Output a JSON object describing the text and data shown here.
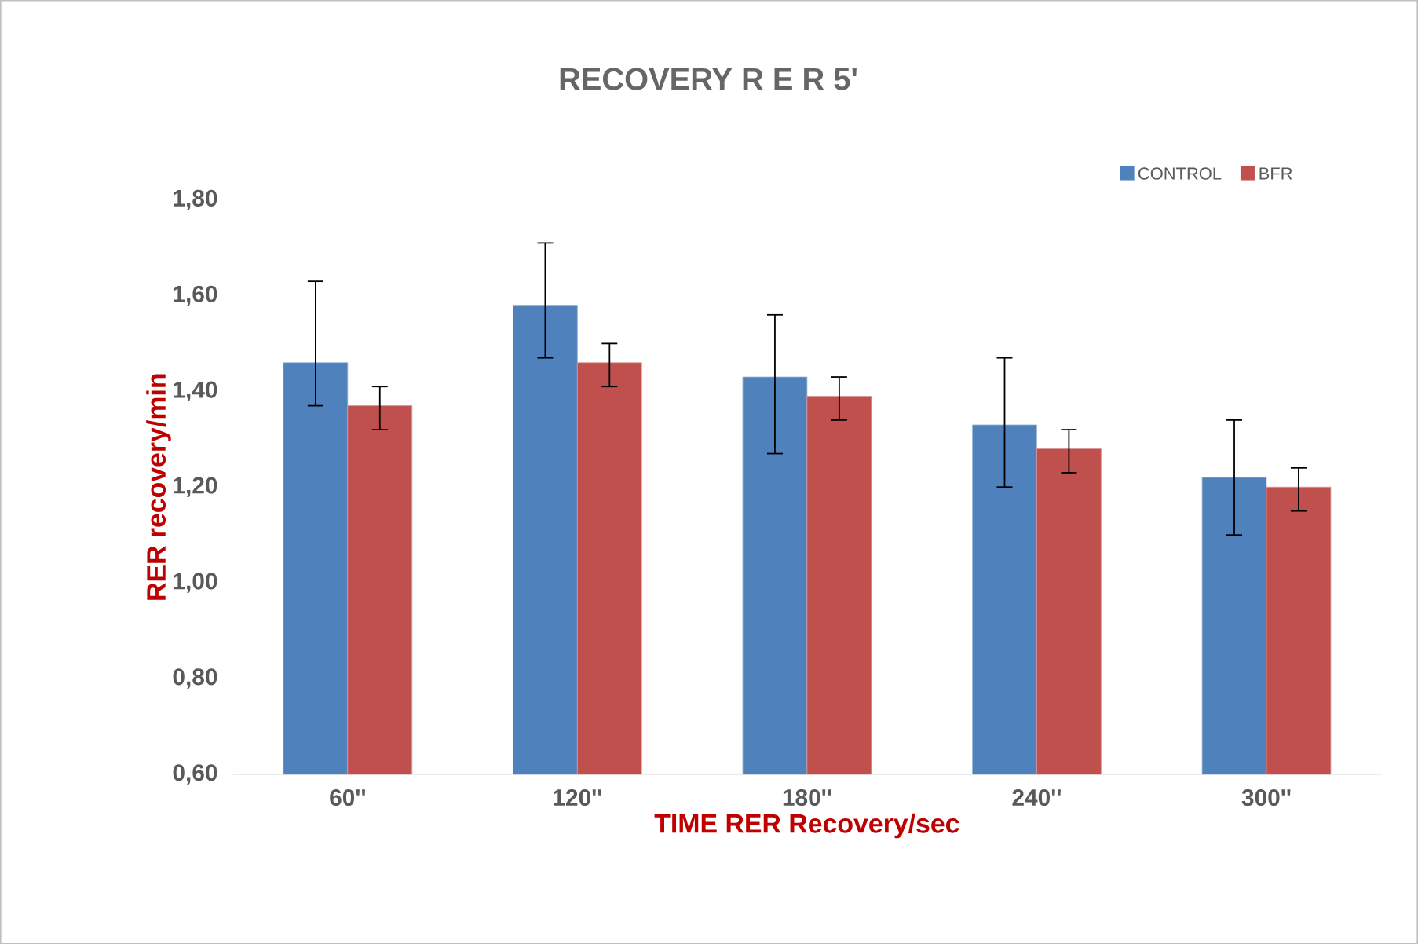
{
  "chart_data": {
    "type": "bar",
    "title": "RECOVERY R E R  5'",
    "xlabel": "TIME RER Recovery/sec",
    "ylabel": "RER recovery/min",
    "categories": [
      "60''",
      "120''",
      "180''",
      "240''",
      "300''"
    ],
    "series": [
      {
        "name": "CONTROL",
        "color": "#4f81bd",
        "values": [
          1.46,
          1.58,
          1.43,
          1.33,
          1.22
        ],
        "errors": [
          [
            1.37,
            1.63
          ],
          [
            1.47,
            1.71
          ],
          [
            1.27,
            1.56
          ],
          [
            1.2,
            1.47
          ],
          [
            1.1,
            1.34
          ]
        ]
      },
      {
        "name": "BFR",
        "color": "#c0504d",
        "values": [
          1.37,
          1.46,
          1.39,
          1.28,
          1.2
        ],
        "errors": [
          [
            1.32,
            1.41
          ],
          [
            1.41,
            1.5
          ],
          [
            1.34,
            1.43
          ],
          [
            1.23,
            1.32
          ],
          [
            1.15,
            1.24
          ]
        ]
      }
    ],
    "ylim": [
      0.6,
      1.8
    ],
    "yticks": [
      {
        "value": 0.6,
        "label": "0,60"
      },
      {
        "value": 0.8,
        "label": "0,80"
      },
      {
        "value": 1.0,
        "label": "1,00"
      },
      {
        "value": 1.2,
        "label": "1,20"
      },
      {
        "value": 1.4,
        "label": "1,40"
      },
      {
        "value": 1.6,
        "label": "1,60"
      },
      {
        "value": 1.8,
        "label": "1,80"
      }
    ],
    "legend": "top right",
    "grid": false
  }
}
